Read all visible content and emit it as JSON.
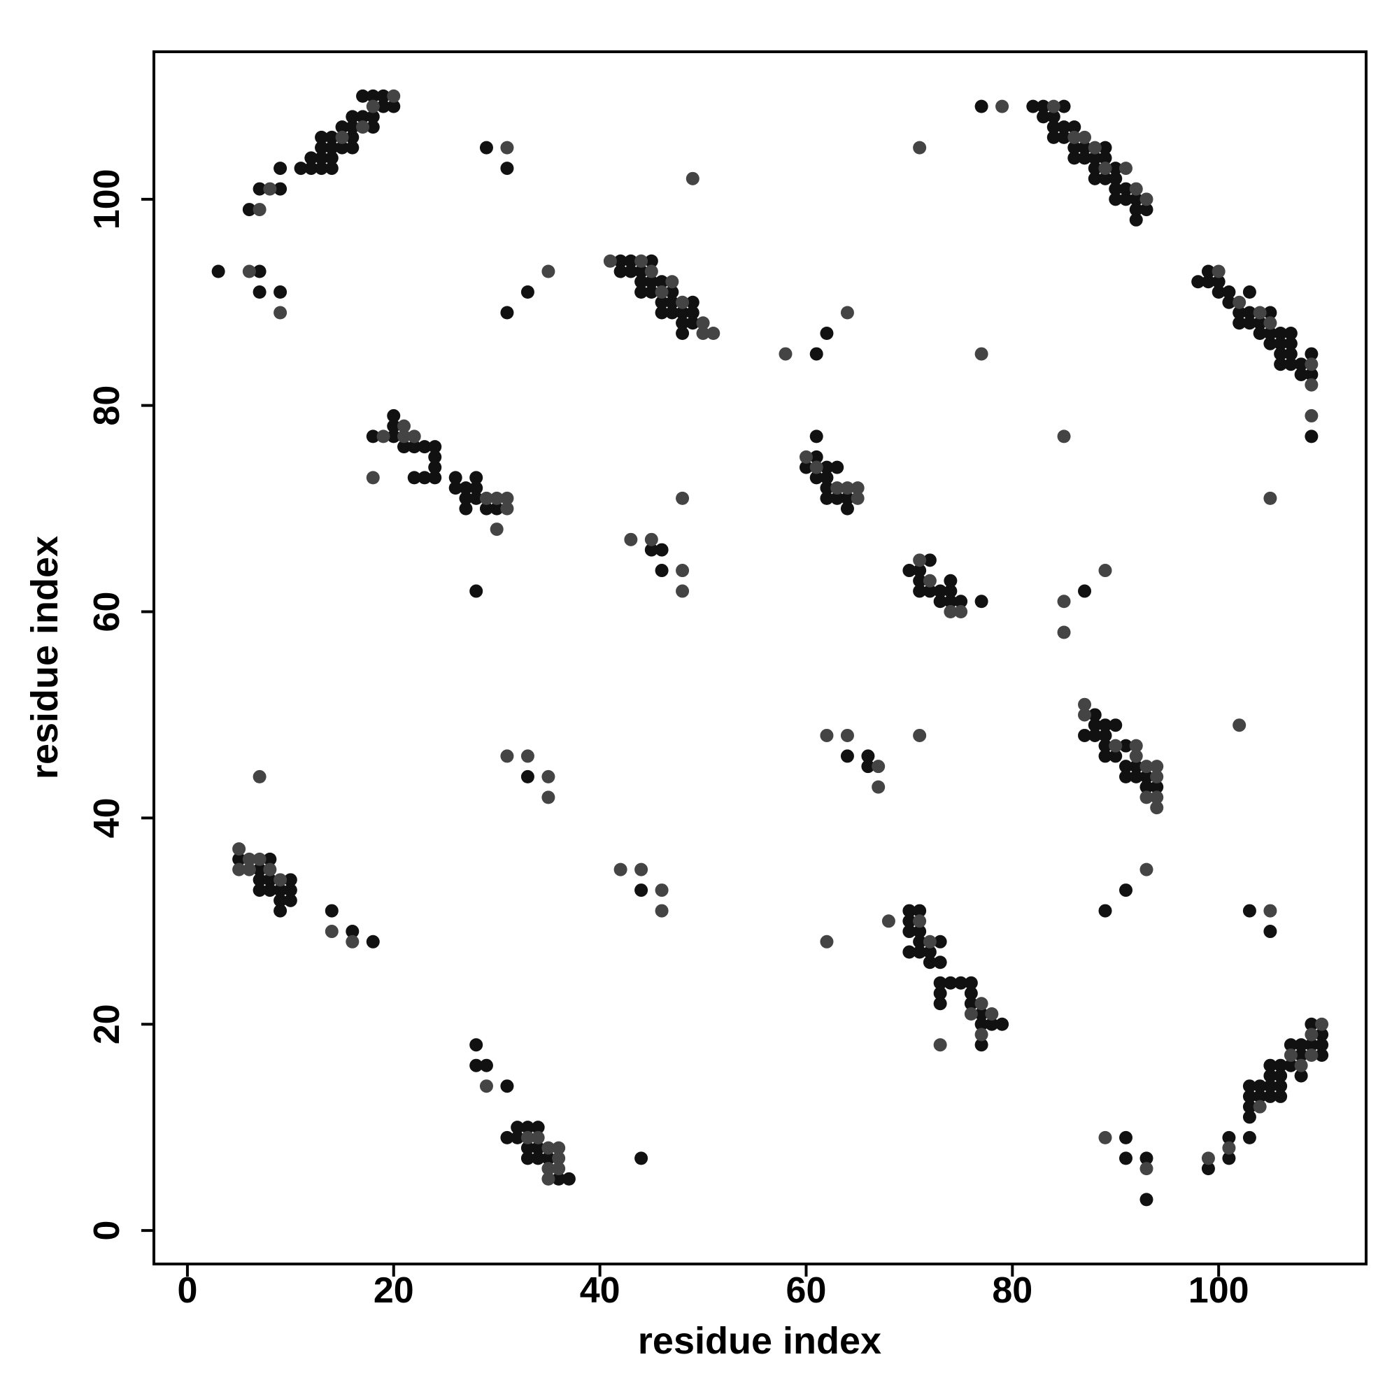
{
  "chart_data": {
    "type": "scatter",
    "xlabel": "residue index",
    "ylabel": "residue index",
    "xlim": [
      -3.25,
      114.3
    ],
    "ylim": [
      -3.25,
      114.3
    ],
    "xticks": [
      0,
      20,
      40,
      60,
      80,
      100
    ],
    "yticks": [
      0,
      20,
      40,
      60,
      80,
      100
    ],
    "series": [
      {
        "color": "#111111",
        "x": [
          6,
          7,
          9,
          9,
          11,
          12,
          12,
          13,
          13,
          13,
          13,
          14,
          14,
          14,
          14,
          15,
          15,
          16,
          16,
          16,
          16,
          17,
          18,
          18,
          17,
          18,
          19,
          19,
          20,
          29,
          31,
          3,
          7,
          7,
          9,
          31,
          33,
          42,
          42,
          43,
          43,
          44,
          44,
          45,
          44,
          45,
          45,
          46,
          46,
          46,
          47,
          47,
          47,
          48,
          48,
          48,
          49,
          49,
          49,
          61,
          62,
          77,
          82,
          83,
          83,
          84,
          84,
          84,
          85,
          85,
          85,
          86,
          86,
          86,
          87,
          87,
          88,
          88,
          88,
          89,
          89,
          89,
          90,
          90,
          90,
          90,
          91,
          91,
          92,
          92,
          92,
          93,
          98,
          99,
          99,
          100,
          100,
          101,
          101,
          102,
          102,
          103,
          103,
          103,
          104,
          104,
          105,
          105,
          105,
          106,
          106,
          106,
          106,
          107,
          107,
          107,
          107,
          108,
          108,
          109,
          109,
          109,
          87,
          18,
          20,
          20,
          20,
          21,
          22,
          22,
          23,
          23,
          24,
          24,
          24,
          24,
          26,
          26,
          27,
          27,
          27,
          28,
          28,
          28,
          29,
          30,
          28,
          45,
          46,
          46,
          60,
          61,
          61,
          61,
          62,
          62,
          62,
          62,
          63,
          63,
          64,
          64,
          70,
          71,
          71,
          71,
          72,
          72,
          73,
          73,
          74,
          74,
          74,
          75,
          77,
          33,
          64,
          66,
          66,
          87,
          88,
          88,
          88,
          89,
          89,
          89,
          89,
          90,
          90,
          91,
          91,
          91,
          92,
          92,
          93,
          93,
          94,
          5,
          7,
          7,
          7,
          8,
          8,
          8,
          9,
          9,
          9,
          10,
          10,
          10,
          14,
          16,
          18,
          44,
          70,
          70,
          70,
          70,
          71,
          71,
          71,
          71,
          72,
          72,
          73,
          73,
          73,
          73,
          73,
          74,
          75,
          76,
          76,
          76,
          77,
          77,
          77,
          78,
          79,
          89,
          91,
          91,
          91,
          93,
          93,
          103,
          105,
          99,
          101,
          101,
          103,
          103,
          103,
          103,
          103,
          104,
          104,
          105,
          105,
          105,
          105,
          106,
          106,
          106,
          106,
          107,
          107,
          108,
          108,
          108,
          109,
          109,
          110,
          110,
          110,
          28,
          28,
          29,
          31,
          31,
          32,
          32,
          33,
          33,
          33,
          34,
          34,
          34,
          35,
          36,
          37,
          44
        ],
        "values": [
          99,
          101,
          101,
          103,
          103,
          103,
          104,
          103,
          104,
          105,
          106,
          103,
          104,
          105,
          106,
          105,
          107,
          105,
          106,
          107,
          108,
          108,
          107,
          108,
          110,
          110,
          110,
          109,
          109,
          105,
          103,
          93,
          93,
          91,
          91,
          89,
          91,
          94,
          93,
          94,
          93,
          93,
          92,
          94,
          91,
          91,
          92,
          92,
          90,
          89,
          91,
          90,
          89,
          89,
          88,
          87,
          90,
          89,
          88,
          85,
          87,
          109,
          109,
          109,
          108,
          107,
          108,
          106,
          109,
          107,
          106,
          107,
          105,
          104,
          105,
          104,
          104,
          103,
          102,
          105,
          104,
          102,
          103,
          102,
          101,
          100,
          101,
          100,
          100,
          99,
          98,
          99,
          92,
          93,
          92,
          92,
          91,
          91,
          90,
          89,
          88,
          91,
          89,
          88,
          88,
          87,
          89,
          86,
          87,
          87,
          86,
          85,
          84,
          87,
          86,
          85,
          84,
          84,
          83,
          85,
          83,
          77,
          62,
          77,
          79,
          78,
          77,
          76,
          76,
          73,
          76,
          73,
          76,
          75,
          74,
          73,
          73,
          72,
          72,
          71,
          70,
          73,
          72,
          71,
          70,
          70,
          62,
          66,
          66,
          64,
          74,
          77,
          75,
          73,
          74,
          73,
          72,
          71,
          74,
          71,
          71,
          70,
          64,
          64,
          63,
          62,
          65,
          62,
          62,
          61,
          63,
          62,
          61,
          61,
          61,
          44,
          46,
          46,
          45,
          48,
          50,
          49,
          48,
          49,
          48,
          47,
          46,
          49,
          46,
          47,
          45,
          44,
          45,
          44,
          44,
          43,
          43,
          36,
          35,
          34,
          33,
          36,
          34,
          33,
          33,
          32,
          31,
          34,
          33,
          32,
          31,
          29,
          28,
          33,
          31,
          30,
          29,
          27,
          31,
          29,
          28,
          27,
          27,
          26,
          28,
          26,
          24,
          23,
          22,
          24,
          24,
          24,
          23,
          22,
          21,
          20,
          18,
          20,
          20,
          31,
          33,
          9,
          7,
          7,
          3,
          31,
          29,
          6,
          9,
          7,
          14,
          13,
          12,
          11,
          9,
          14,
          13,
          16,
          15,
          14,
          13,
          16,
          15,
          14,
          13,
          18,
          16,
          18,
          17,
          15,
          20,
          18,
          19,
          18,
          17,
          18,
          16,
          16,
          14,
          9,
          10,
          9,
          10,
          8,
          7,
          10,
          8,
          7,
          7,
          5,
          5,
          7
        ]
      },
      {
        "color": "#444444",
        "x": [
          7,
          8,
          15,
          17,
          18,
          20,
          31,
          49,
          6,
          9,
          35,
          41,
          44,
          45,
          46,
          47,
          48,
          50,
          50,
          51,
          58,
          64,
          77,
          79,
          71,
          84,
          86,
          87,
          88,
          89,
          91,
          92,
          93,
          100,
          102,
          104,
          105,
          109,
          109,
          109,
          85,
          105,
          89,
          85,
          85,
          18,
          19,
          21,
          21,
          22,
          29,
          30,
          30,
          31,
          31,
          43,
          45,
          48,
          48,
          48,
          60,
          61,
          63,
          64,
          65,
          65,
          71,
          72,
          74,
          75,
          31,
          33,
          35,
          35,
          7,
          62,
          64,
          67,
          67,
          71,
          102,
          87,
          87,
          90,
          92,
          92,
          93,
          93,
          94,
          94,
          94,
          94,
          5,
          5,
          6,
          6,
          7,
          8,
          9,
          14,
          16,
          42,
          44,
          46,
          46,
          62,
          68,
          71,
          72,
          73,
          76,
          77,
          77,
          78,
          93,
          89,
          93,
          105,
          99,
          101,
          104,
          107,
          108,
          109,
          109,
          110,
          29,
          33,
          34,
          35,
          35,
          35,
          36,
          36,
          36
        ],
        "values": [
          99,
          101,
          106,
          107,
          109,
          110,
          105,
          102,
          93,
          89,
          93,
          94,
          94,
          93,
          91,
          92,
          90,
          88,
          87,
          87,
          85,
          89,
          85,
          109,
          105,
          109,
          106,
          106,
          105,
          103,
          103,
          101,
          100,
          93,
          90,
          89,
          88,
          84,
          82,
          79,
          77,
          71,
          64,
          61,
          58,
          73,
          77,
          78,
          77,
          77,
          71,
          71,
          68,
          71,
          70,
          67,
          67,
          71,
          64,
          62,
          75,
          74,
          72,
          72,
          72,
          71,
          65,
          63,
          60,
          60,
          46,
          46,
          44,
          42,
          44,
          48,
          48,
          45,
          43,
          48,
          49,
          51,
          50,
          47,
          47,
          46,
          45,
          42,
          45,
          44,
          42,
          41,
          37,
          35,
          36,
          35,
          36,
          35,
          34,
          29,
          28,
          35,
          35,
          33,
          31,
          28,
          30,
          30,
          28,
          18,
          21,
          22,
          19,
          21,
          35,
          9,
          6,
          31,
          7,
          8,
          12,
          17,
          16,
          19,
          17,
          20,
          14,
          9,
          9,
          8,
          6,
          5,
          8,
          7,
          6
        ]
      }
    ]
  }
}
